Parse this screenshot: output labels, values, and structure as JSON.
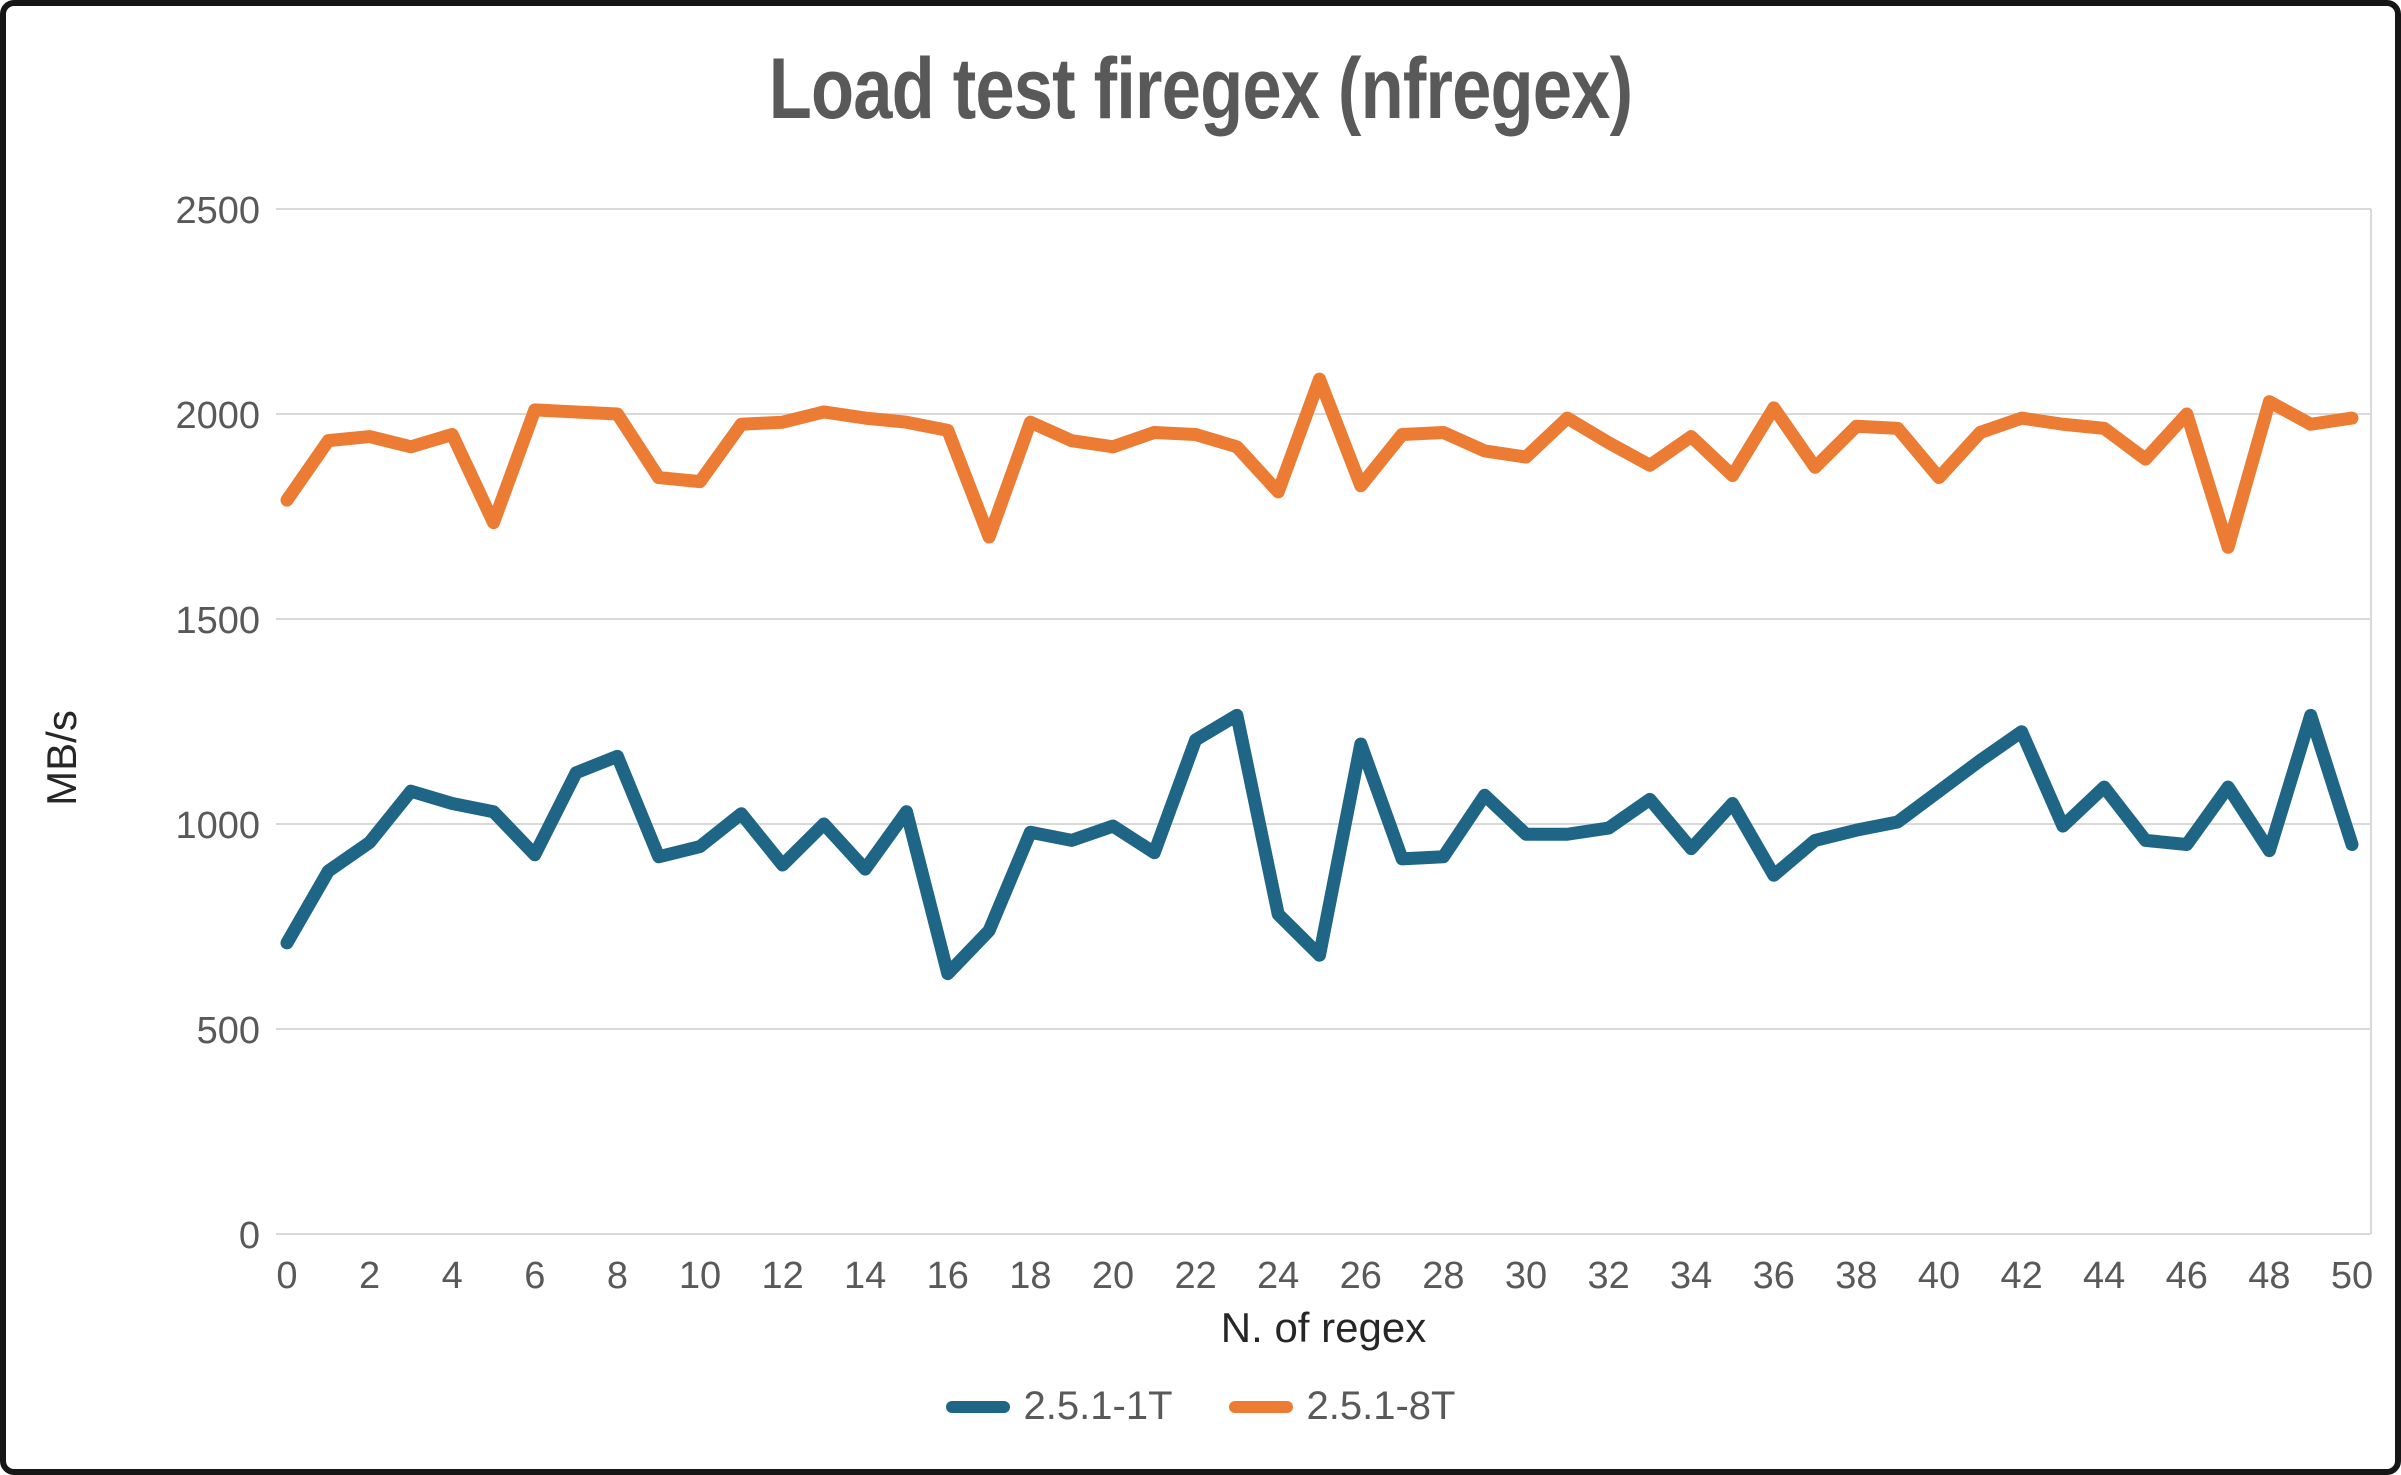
{
  "chart_data": {
    "type": "line",
    "title": "Load test firegex (nfregex)",
    "xlabel": "N. of regex",
    "ylabel": "MB/s",
    "x": [
      0,
      1,
      2,
      3,
      4,
      5,
      6,
      7,
      8,
      9,
      10,
      11,
      12,
      13,
      14,
      15,
      16,
      17,
      18,
      19,
      20,
      21,
      22,
      23,
      24,
      25,
      26,
      27,
      28,
      29,
      30,
      31,
      32,
      33,
      34,
      35,
      36,
      37,
      38,
      39,
      40,
      41,
      42,
      43,
      44,
      45,
      46,
      47,
      48,
      49,
      50
    ],
    "x_tick_labels": [
      0,
      2,
      4,
      6,
      8,
      10,
      12,
      14,
      16,
      18,
      20,
      22,
      24,
      26,
      28,
      30,
      32,
      34,
      36,
      38,
      40,
      42,
      44,
      46,
      48,
      50
    ],
    "y_ticks": [
      0,
      500,
      1000,
      1500,
      2000,
      2500
    ],
    "ylim": [
      0,
      2500
    ],
    "grid": true,
    "grid_color": "#D9D9D9",
    "tick_label_color": "#595959",
    "axis_title_color": "#262626",
    "title_color": "#595959",
    "legend_position": "bottom",
    "series": [
      {
        "name": "2.5.1-1T",
        "color": "#1F6586",
        "values": [
          710,
          885,
          955,
          1080,
          1050,
          1030,
          925,
          1125,
          1165,
          920,
          945,
          1025,
          900,
          1000,
          890,
          1030,
          635,
          740,
          980,
          960,
          995,
          930,
          1205,
          1265,
          780,
          680,
          1195,
          915,
          920,
          1070,
          975,
          975,
          990,
          1060,
          940,
          1050,
          875,
          960,
          985,
          1005,
          1080,
          1155,
          1225,
          995,
          1090,
          960,
          950,
          1090,
          935,
          1265,
          950
        ]
      },
      {
        "name": "2.5.1-8T",
        "color": "#EC7B33",
        "values": [
          1790,
          1935,
          1945,
          1920,
          1950,
          1735,
          2010,
          2005,
          2000,
          1845,
          1835,
          1975,
          1980,
          2005,
          1990,
          1980,
          1960,
          1700,
          1980,
          1935,
          1920,
          1955,
          1950,
          1920,
          1810,
          2085,
          1825,
          1950,
          1955,
          1910,
          1895,
          1990,
          1930,
          1875,
          1945,
          1850,
          2015,
          1870,
          1970,
          1965,
          1845,
          1955,
          1990,
          1975,
          1965,
          1890,
          2000,
          1675,
          2030,
          1975,
          1990
        ]
      }
    ]
  }
}
